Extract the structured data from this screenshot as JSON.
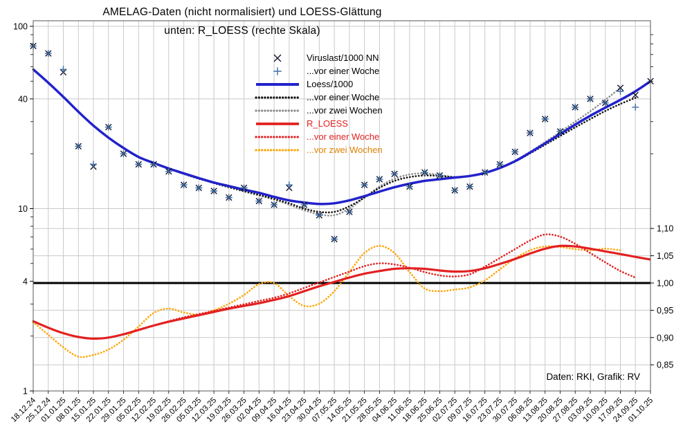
{
  "title": {
    "line1": "AMELAG-Daten (nicht normalisiert) und LOESS-Glättung",
    "line2": "unten: R_LOESS (rechte Skala)"
  },
  "attribution": "Daten: RKI, Grafik: RV",
  "chart_data": {
    "type": "line",
    "title": "AMELAG-Daten (nicht normalisiert) und LOESS-Glättung",
    "subtitle": "unten: R_LOESS (rechte Skala)",
    "style": {
      "grid_color": "#c9c9c9",
      "frame_color": "#555555",
      "background": "#ffffff"
    },
    "x_dates": [
      "18.12.24",
      "25.12.24",
      "01.01.25",
      "08.01.25",
      "15.01.25",
      "22.01.25",
      "29.01.25",
      "05.02.25",
      "12.02.25",
      "19.02.25",
      "26.02.25",
      "05.03.25",
      "12.03.25",
      "19.03.25",
      "26.03.25",
      "02.04.25",
      "09.04.25",
      "16.04.25",
      "23.04.25",
      "30.04.25",
      "07.05.25",
      "14.05.25",
      "21.05.25",
      "28.05.25",
      "04.06.25",
      "11.06.25",
      "18.06.25",
      "25.06.25",
      "02.07.25",
      "09.07.25",
      "16.07.25",
      "23.07.25",
      "30.07.25",
      "06.08.25",
      "13.08.25",
      "20.08.25",
      "27.08.25",
      "03.09.25",
      "10.09.25",
      "17.09.25",
      "24.09.25",
      "01.10.25"
    ],
    "left_axis": {
      "scale": "log",
      "range": [
        1,
        100
      ],
      "ticks": [
        {
          "v": 100,
          "label": "100"
        },
        {
          "v": 40,
          "label": "40"
        },
        {
          "v": 10,
          "label": "10"
        },
        {
          "v": 4,
          "label": "4"
        },
        {
          "v": 1,
          "label": "1"
        }
      ],
      "grid_values": [
        10,
        40,
        100
      ],
      "minor_ticks": [
        2,
        3,
        5,
        6,
        7,
        8,
        9,
        20,
        30,
        50,
        60,
        70,
        80,
        90
      ]
    },
    "right_axis": {
      "scale": "linear",
      "range": [
        0.85,
        1.1
      ],
      "ticks": [
        {
          "v": 1.1,
          "label": "1,10"
        },
        {
          "v": 1.05,
          "label": "1,05"
        },
        {
          "v": 1.0,
          "label": "1,00"
        },
        {
          "v": 0.95,
          "label": "0,95"
        },
        {
          "v": 0.9,
          "label": "0,90"
        },
        {
          "v": 0.85,
          "label": "0,85"
        }
      ],
      "grid_values": [
        0.85,
        0.9,
        0.95,
        1.05,
        1.1
      ],
      "log_minor_ticks": [
        20,
        30,
        50,
        60,
        70,
        80,
        90
      ]
    },
    "reference_line": {
      "right_value": 1.0,
      "left_value": 4,
      "color": "#000000",
      "width": 3
    },
    "draw_order": [
      "loess_w2",
      "loess_w1",
      "loess",
      "r_w2",
      "r_w1",
      "r",
      "viruslast",
      "viruslast_w1"
    ],
    "series": [
      {
        "id": "viruslast",
        "name": "Viruslast/1000 NN",
        "type": "scatter",
        "marker": "x",
        "color": "#14142e",
        "marker_size": 4.2,
        "axis": "left",
        "values": [
          78,
          71,
          56,
          22,
          17,
          28,
          20,
          17.5,
          17.5,
          16,
          13.5,
          13,
          12.5,
          11.5,
          13,
          11,
          10.5,
          13,
          10.5,
          9.2,
          6.8,
          9.6,
          13.5,
          14.5,
          15.5,
          13.2,
          15.8,
          15.2,
          12.6,
          13.2,
          15.8,
          17.5,
          20.5,
          26,
          31,
          26.5,
          36,
          40,
          38,
          46,
          42,
          50
        ]
      },
      {
        "id": "viruslast_w1",
        "name": "...vor einer Woche",
        "type": "scatter",
        "marker": "plus",
        "color": "#3b6ea5",
        "marker_size": 5,
        "axis": "left",
        "values": [
          78,
          71,
          58,
          22,
          17.5,
          28,
          20,
          17.5,
          17.5,
          16,
          13.5,
          13,
          12.5,
          11.5,
          13,
          11,
          10.5,
          13.5,
          10.5,
          9.2,
          6.8,
          9.6,
          13.5,
          14.5,
          15.5,
          13.2,
          15.8,
          15.2,
          12.6,
          13.2,
          15.8,
          17.5,
          20.5,
          26,
          31,
          26.5,
          36,
          40,
          38,
          44,
          36
        ]
      },
      {
        "id": "loess",
        "name": "Loess/1000",
        "type": "line",
        "style": "solid",
        "color": "#2222cc",
        "width": 3.5,
        "axis": "left",
        "values": [
          58,
          49,
          41,
          34,
          28.5,
          24.5,
          21.5,
          19.2,
          17.8,
          16.6,
          15.6,
          14.7,
          13.9,
          13.3,
          12.7,
          12.2,
          11.6,
          11.1,
          10.8,
          10.6,
          10.7,
          11.1,
          11.7,
          12.4,
          13.1,
          13.7,
          14.2,
          14.5,
          14.8,
          15.1,
          15.7,
          16.7,
          18.2,
          20.3,
          22.8,
          25.7,
          28.9,
          32.3,
          35.8,
          39.5,
          44,
          50
        ]
      },
      {
        "id": "loess_w1",
        "name": "...vor einer Woche",
        "type": "line",
        "style": "dotted",
        "color": "#151515",
        "width": 2.7,
        "axis": "left",
        "values": [
          58,
          49,
          41,
          34,
          28.5,
          24.5,
          21.5,
          19.2,
          17.8,
          16.6,
          15.5,
          14.6,
          13.8,
          13.1,
          12.5,
          11.9,
          11.3,
          10.7,
          10.0,
          9.6,
          9.6,
          10.3,
          11.5,
          13.0,
          14.2,
          14.9,
          15.2,
          15.1,
          14.9,
          15.1,
          15.7,
          16.7,
          18.1,
          20.1,
          22.4,
          25.0,
          27.9,
          31.0,
          34.3,
          37.5,
          40.5
        ]
      },
      {
        "id": "loess_w2",
        "name": "...vor zwei Wochen",
        "type": "line",
        "style": "dotted",
        "color": "#8c8c8c",
        "width": 2.7,
        "axis": "left",
        "values": [
          58,
          49,
          41,
          34,
          28.5,
          24.5,
          21.5,
          19.2,
          17.8,
          16.6,
          15.5,
          14.6,
          13.8,
          13.1,
          12.4,
          11.8,
          11.2,
          10.5,
          9.8,
          9.3,
          9.2,
          10.0,
          11.5,
          13.2,
          14.6,
          15.4,
          15.6,
          15.3,
          14.9,
          15.1,
          15.7,
          16.8,
          18.3,
          20.5,
          23.2,
          26.3,
          30.0,
          34.2,
          39.5,
          46
        ]
      },
      {
        "id": "r",
        "name": "R_LOESS",
        "type": "line",
        "style": "solid",
        "color": "#e32020",
        "width": 3.2,
        "axis": "right",
        "values": [
          0.93,
          0.918,
          0.908,
          0.901,
          0.898,
          0.9,
          0.906,
          0.914,
          0.922,
          0.929,
          0.935,
          0.941,
          0.947,
          0.953,
          0.958,
          0.963,
          0.969,
          0.976,
          0.985,
          0.994,
          1.002,
          1.01,
          1.017,
          1.022,
          1.026,
          1.027,
          1.026,
          1.023,
          1.021,
          1.022,
          1.027,
          1.035,
          1.044,
          1.054,
          1.063,
          1.068,
          1.067,
          1.063,
          1.058,
          1.053,
          1.048,
          1.043
        ]
      },
      {
        "id": "r_w1",
        "name": "...vor einer Woche",
        "type": "line",
        "style": "dotted",
        "color": "#e32020",
        "width": 2.7,
        "axis": "right",
        "values": [
          0.93,
          0.918,
          0.908,
          0.901,
          0.898,
          0.9,
          0.906,
          0.914,
          0.922,
          0.93,
          0.937,
          0.943,
          0.949,
          0.955,
          0.961,
          0.967,
          0.973,
          0.981,
          0.991,
          1.001,
          1.011,
          1.021,
          1.031,
          1.036,
          1.034,
          1.028,
          1.02,
          1.014,
          1.012,
          1.016,
          1.03,
          1.046,
          1.062,
          1.078,
          1.089,
          1.085,
          1.072,
          1.055,
          1.038,
          1.022,
          1.01
        ]
      },
      {
        "id": "r_w2",
        "name": "...vor zwei Wochen",
        "type": "line",
        "style": "dotted",
        "color": "#ffa500",
        "width": 2.7,
        "axis": "right",
        "values": [
          0.928,
          0.905,
          0.882,
          0.865,
          0.868,
          0.878,
          0.896,
          0.92,
          0.945,
          0.953,
          0.946,
          0.942,
          0.95,
          0.962,
          0.978,
          0.998,
          1.0,
          0.976,
          0.958,
          0.962,
          0.985,
          1.02,
          1.055,
          1.068,
          1.055,
          1.02,
          0.99,
          0.985,
          0.988,
          0.992,
          1.005,
          1.025,
          1.045,
          1.06,
          1.067,
          1.066,
          1.062,
          1.06,
          1.063,
          1.06
        ]
      }
    ],
    "legend": {
      "position": "inside-top-center",
      "text_colors": [
        "#000000",
        "#000000",
        "#000000",
        "#000000",
        "#000000",
        "#e32020",
        "#e32020",
        "#e08000"
      ]
    }
  }
}
